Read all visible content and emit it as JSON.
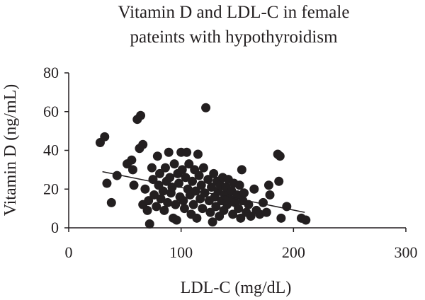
{
  "chart_data": {
    "type": "scatter",
    "title": "Vitamin D and LDL-C in female",
    "subtitle": "pateints with hypothyroidism",
    "xlabel": "LDL-C (mg/dL)",
    "ylabel": "Vitamin D (ng/mL)",
    "xlim": [
      0,
      300
    ],
    "ylim": [
      0,
      80
    ],
    "xticks": [
      0,
      100,
      200,
      300
    ],
    "yticks": [
      0,
      20,
      40,
      60,
      80
    ],
    "grid": false,
    "legend": "none",
    "trendline": {
      "x": [
        30,
        210
      ],
      "y": [
        29,
        8
      ]
    },
    "points": [
      {
        "x": 28,
        "y": 44
      },
      {
        "x": 32,
        "y": 47
      },
      {
        "x": 34,
        "y": 23
      },
      {
        "x": 38,
        "y": 13
      },
      {
        "x": 43,
        "y": 27
      },
      {
        "x": 52,
        "y": 33
      },
      {
        "x": 56,
        "y": 35
      },
      {
        "x": 57,
        "y": 30
      },
      {
        "x": 58,
        "y": 22
      },
      {
        "x": 61,
        "y": 56
      },
      {
        "x": 64,
        "y": 58
      },
      {
        "x": 63,
        "y": 41
      },
      {
        "x": 66,
        "y": 43
      },
      {
        "x": 66,
        "y": 12
      },
      {
        "x": 68,
        "y": 20
      },
      {
        "x": 70,
        "y": 9
      },
      {
        "x": 71,
        "y": 14
      },
      {
        "x": 72,
        "y": 2
      },
      {
        "x": 74,
        "y": 31
      },
      {
        "x": 75,
        "y": 25
      },
      {
        "x": 76,
        "y": 17
      },
      {
        "x": 78,
        "y": 11
      },
      {
        "x": 79,
        "y": 37
      },
      {
        "x": 80,
        "y": 22
      },
      {
        "x": 81,
        "y": 28
      },
      {
        "x": 82,
        "y": 15
      },
      {
        "x": 84,
        "y": 19
      },
      {
        "x": 85,
        "y": 9
      },
      {
        "x": 86,
        "y": 31
      },
      {
        "x": 87,
        "y": 24
      },
      {
        "x": 88,
        "y": 13
      },
      {
        "x": 89,
        "y": 39
      },
      {
        "x": 90,
        "y": 26
      },
      {
        "x": 91,
        "y": 18
      },
      {
        "x": 92,
        "y": 21
      },
      {
        "x": 93,
        "y": 5
      },
      {
        "x": 94,
        "y": 33
      },
      {
        "x": 95,
        "y": 12
      },
      {
        "x": 96,
        "y": 4
      },
      {
        "x": 97,
        "y": 28
      },
      {
        "x": 98,
        "y": 23
      },
      {
        "x": 99,
        "y": 16
      },
      {
        "x": 100,
        "y": 39
      },
      {
        "x": 101,
        "y": 30
      },
      {
        "x": 102,
        "y": 14
      },
      {
        "x": 103,
        "y": 10
      },
      {
        "x": 104,
        "y": 26
      },
      {
        "x": 105,
        "y": 39
      },
      {
        "x": 106,
        "y": 20
      },
      {
        "x": 107,
        "y": 33
      },
      {
        "x": 108,
        "y": 17
      },
      {
        "x": 109,
        "y": 7
      },
      {
        "x": 110,
        "y": 24
      },
      {
        "x": 111,
        "y": 12
      },
      {
        "x": 112,
        "y": 30
      },
      {
        "x": 113,
        "y": 19
      },
      {
        "x": 114,
        "y": 5
      },
      {
        "x": 115,
        "y": 38
      },
      {
        "x": 116,
        "y": 27
      },
      {
        "x": 117,
        "y": 15
      },
      {
        "x": 118,
        "y": 22
      },
      {
        "x": 119,
        "y": 10
      },
      {
        "x": 120,
        "y": 31
      },
      {
        "x": 121,
        "y": 18
      },
      {
        "x": 122,
        "y": 62
      },
      {
        "x": 124,
        "y": 25
      },
      {
        "x": 125,
        "y": 14
      },
      {
        "x": 126,
        "y": 8
      },
      {
        "x": 127,
        "y": 21
      },
      {
        "x": 128,
        "y": 3
      },
      {
        "x": 129,
        "y": 28
      },
      {
        "x": 130,
        "y": 16
      },
      {
        "x": 131,
        "y": 11
      },
      {
        "x": 132,
        "y": 24
      },
      {
        "x": 133,
        "y": 19
      },
      {
        "x": 134,
        "y": 6
      },
      {
        "x": 135,
        "y": 22
      },
      {
        "x": 136,
        "y": 14
      },
      {
        "x": 137,
        "y": 26
      },
      {
        "x": 138,
        "y": 9
      },
      {
        "x": 139,
        "y": 17
      },
      {
        "x": 140,
        "y": 21
      },
      {
        "x": 141,
        "y": 12
      },
      {
        "x": 142,
        "y": 25
      },
      {
        "x": 143,
        "y": 15
      },
      {
        "x": 145,
        "y": 19
      },
      {
        "x": 146,
        "y": 7
      },
      {
        "x": 147,
        "y": 23
      },
      {
        "x": 148,
        "y": 13
      },
      {
        "x": 150,
        "y": 17
      },
      {
        "x": 151,
        "y": 10
      },
      {
        "x": 152,
        "y": 22
      },
      {
        "x": 153,
        "y": 5
      },
      {
        "x": 154,
        "y": 30
      },
      {
        "x": 155,
        "y": 14
      },
      {
        "x": 156,
        "y": 18
      },
      {
        "x": 158,
        "y": 8
      },
      {
        "x": 160,
        "y": 12
      },
      {
        "x": 162,
        "y": 6
      },
      {
        "x": 165,
        "y": 20
      },
      {
        "x": 167,
        "y": 9
      },
      {
        "x": 170,
        "y": 7
      },
      {
        "x": 173,
        "y": 13
      },
      {
        "x": 176,
        "y": 8
      },
      {
        "x": 178,
        "y": 22
      },
      {
        "x": 179,
        "y": 17
      },
      {
        "x": 186,
        "y": 38
      },
      {
        "x": 188,
        "y": 37
      },
      {
        "x": 187,
        "y": 24
      },
      {
        "x": 189,
        "y": 5
      },
      {
        "x": 194,
        "y": 11
      },
      {
        "x": 207,
        "y": 5
      },
      {
        "x": 211,
        "y": 4
      }
    ]
  }
}
